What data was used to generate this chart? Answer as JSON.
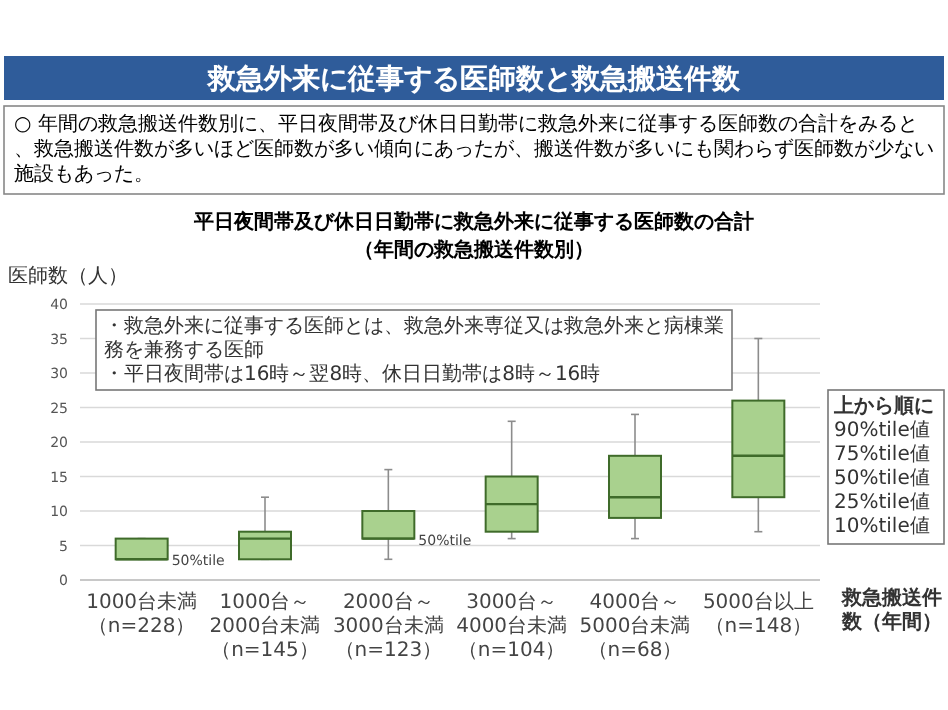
{
  "chart_data": {
    "type": "box",
    "title": "平日夜間帯及び休日日勤帯に救急外来に従事する医師数の合計",
    "subtitle": "（年間の救急搬送件数別）",
    "ylabel": "医師数（人）",
    "xlabel": "救急搬送件数（年間）",
    "categories": [
      "1000台未満（n=228）",
      "1000台～2000台未満（n=145）",
      "2000台～3000台未満（n=123）",
      "3000台～4000台未満（n=104）",
      "4000台～5000台未満（n=68）",
      "5000台以上（n=148）"
    ],
    "series": [
      {
        "color": "#a9d18e",
        "boxes": [
          {
            "low": 3,
            "q1": 3,
            "median": 3,
            "q3": 6,
            "high": 6
          },
          {
            "low": 3,
            "q1": 3,
            "median": 6,
            "q3": 7,
            "high": 12
          },
          {
            "low": 3,
            "q1": 6,
            "median": 6,
            "q3": 10,
            "high": 16
          },
          {
            "low": 6,
            "q1": 7,
            "median": 11,
            "q3": 15,
            "high": 23
          },
          {
            "low": 6,
            "q1": 9,
            "median": 12,
            "q3": 18,
            "high": 24
          },
          {
            "low": 7,
            "q1": 12,
            "median": 18,
            "q3": 26,
            "high": 35
          }
        ]
      }
    ],
    "ylim": [
      0,
      40
    ],
    "yticks": [
      0,
      5,
      10,
      15,
      20,
      25,
      30,
      35,
      40
    ],
    "grid": "y",
    "annotations": [
      "救急外来に従事する医師数と救急搬送件数",
      "○ 年間の救急搬送件数別に、平日夜間帯及び休日日勤帯に救急外来に従事する医師数の合計をみると、救急搬送件数が多いほど医師数が多い傾向にあったが、搬送件数が多いにも関わらず医師数が少ない施設もあった。",
      "・救急外来に従事する医師とは、救急外来専従又は救急外来と病棟業務を兼務する医師",
      "・平日夜間帯は16時～翌8時、休日日勤帯は8時～16時",
      "上から順に",
      "90%tile値",
      "75%tile値",
      "50%tile値",
      "25%tile値",
      "10%tile値",
      {
        "text": "50%tile",
        "x": "1000台未満（n=228）",
        "y": 3
      },
      {
        "text": "50%tile",
        "x": "2000台～3000台未満（n=123）",
        "y": 6
      }
    ]
  }
}
